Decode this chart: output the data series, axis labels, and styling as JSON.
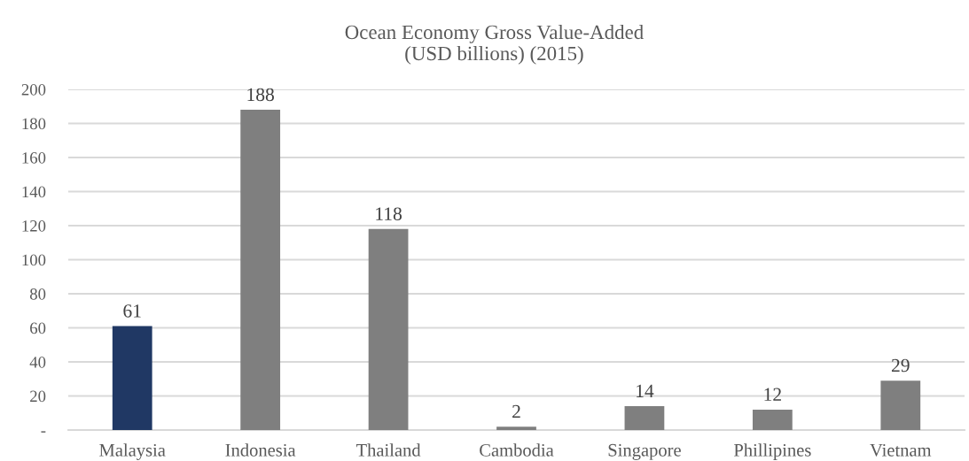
{
  "chart_data": {
    "type": "bar",
    "title": "Ocean Economy Gross Value-Added\n(USD billions) (2015)",
    "categories": [
      "Malaysia",
      "Indonesia",
      "Thailand",
      "Cambodia",
      "Singapore",
      "Phillipines",
      "Vietnam"
    ],
    "values": [
      61,
      188,
      118,
      2,
      14,
      12,
      29
    ],
    "colors": [
      "#203864",
      "#7f7f7f",
      "#7f7f7f",
      "#7f7f7f",
      "#7f7f7f",
      "#7f7f7f",
      "#7f7f7f"
    ],
    "ylim": [
      0,
      200
    ],
    "yticks": [
      {
        "value": 0,
        "label": "-"
      },
      20,
      40,
      60,
      80,
      100,
      120,
      140,
      160,
      180,
      200
    ],
    "grid": "y",
    "data_labels": true
  }
}
